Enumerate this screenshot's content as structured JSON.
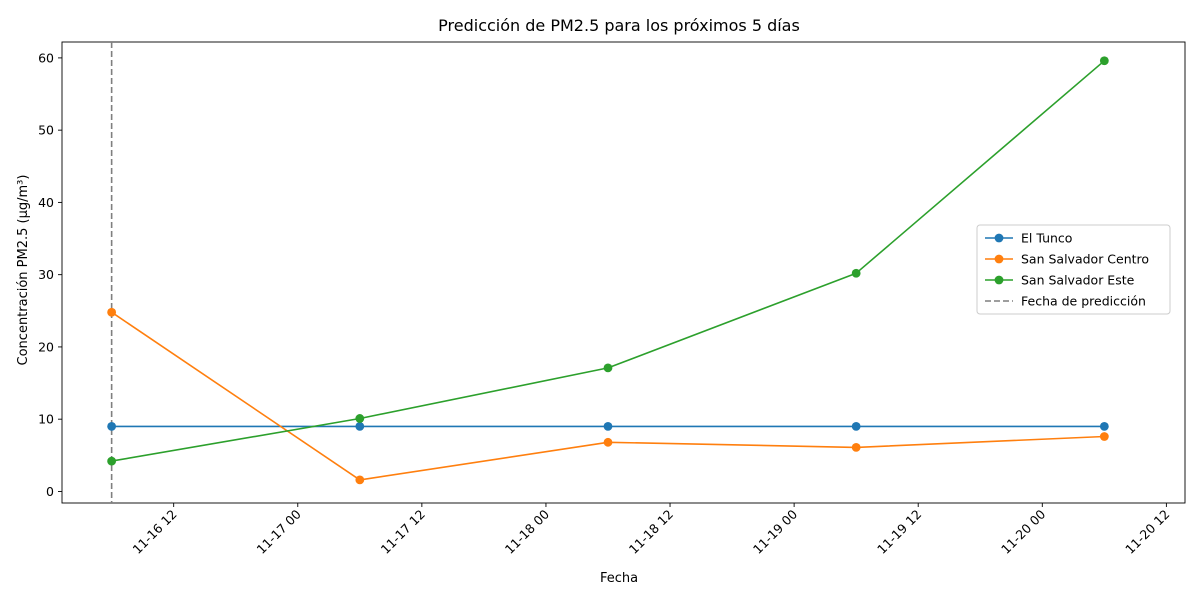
{
  "chart_data": {
    "type": "line",
    "title": "Predicción de PM2.5 para los próximos 5 días",
    "xlabel": "Fecha",
    "ylabel": "Concentración PM2.5 (μg/m³)",
    "x": [
      "2024-11-16 06:00",
      "2024-11-17 06:00",
      "2024-11-18 06:00",
      "2024-11-19 06:00",
      "2024-11-20 06:00"
    ],
    "xlim": [
      "2024-11-16 01:12",
      "2024-11-20 13:48"
    ],
    "xticks": [
      "11-16 12",
      "11-17 00",
      "11-17 12",
      "11-18 00",
      "11-18 12",
      "11-19 00",
      "11-19 12",
      "11-20 00",
      "11-20 12"
    ],
    "xtick_times": [
      "2024-11-16 12:00",
      "2024-11-17 00:00",
      "2024-11-17 12:00",
      "2024-11-18 00:00",
      "2024-11-18 12:00",
      "2024-11-19 00:00",
      "2024-11-19 12:00",
      "2024-11-20 00:00",
      "2024-11-20 12:00"
    ],
    "ylim": [
      -1.6,
      62.2
    ],
    "yticks": [
      0,
      10,
      20,
      30,
      40,
      50,
      60
    ],
    "series": [
      {
        "name": "El Tunco",
        "color": "#1f77b4",
        "values": [
          9.0,
          9.0,
          9.0,
          9.0,
          9.0
        ]
      },
      {
        "name": "San Salvador Centro",
        "color": "#ff7f0e",
        "values": [
          24.8,
          1.6,
          6.8,
          6.1,
          7.6
        ]
      },
      {
        "name": "San Salvador Este",
        "color": "#2ca02c",
        "values": [
          4.2,
          10.1,
          17.1,
          30.2,
          59.6
        ]
      }
    ],
    "vline": {
      "name": "Fecha de predicción",
      "x": "2024-11-16 06:00",
      "color": "#7f7f7f",
      "style": "dashed"
    },
    "legend_position": "center-right",
    "grid": false
  }
}
